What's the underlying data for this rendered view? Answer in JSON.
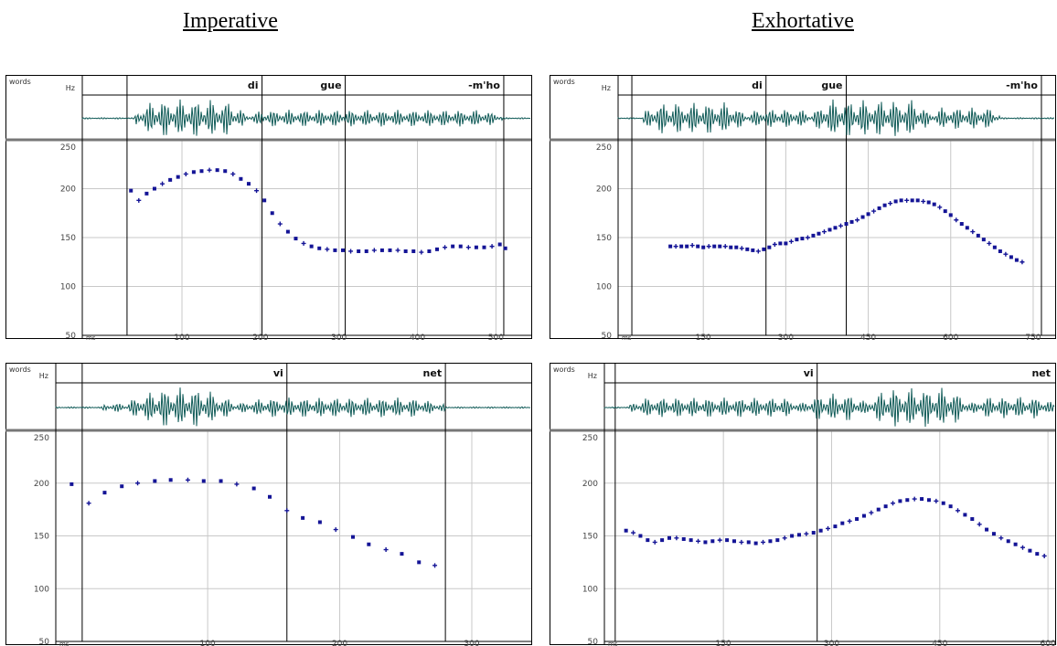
{
  "titles": {
    "left": "Imperative",
    "right": "Exhortative"
  },
  "colors": {
    "frame": "#000000",
    "grid": "#c8c8c8",
    "tier_line": "#777777",
    "waveform": "#0f5a57",
    "pitch_points": "#141496"
  },
  "chart_data": [
    {
      "type": "scatter",
      "title": "",
      "tier_label": "words",
      "unit_label": "Hz",
      "x_unit": "ms",
      "xlim": [
        -27,
        545
      ],
      "ylim": [
        50,
        250
      ],
      "y_ticks": [
        250,
        200,
        150,
        100,
        50
      ],
      "x_ticks": [
        100,
        200,
        300,
        400,
        500
      ],
      "word_boundaries": [
        30,
        202,
        308,
        510
      ],
      "words": [
        {
          "label": "di",
          "end": 202
        },
        {
          "label": "gue",
          "end": 308
        },
        {
          "label": "-m'ho",
          "end": 510
        }
      ],
      "waveform": [
        {
          "start": 40,
          "end": 180,
          "amp": 1.0
        },
        {
          "start": 180,
          "end": 510,
          "amp": 0.45
        }
      ],
      "series": [
        {
          "x": [
            35,
            45,
            55,
            65,
            75,
            85,
            95,
            105,
            115,
            125,
            135,
            145,
            155,
            165,
            175,
            185,
            195,
            205,
            215,
            225,
            235,
            245,
            255,
            265,
            275,
            285,
            295,
            305,
            315,
            325,
            335,
            345,
            355,
            365,
            375,
            385,
            395,
            405,
            415,
            425,
            435,
            445,
            455,
            465,
            475,
            485,
            495,
            505,
            512
          ],
          "y": [
            198,
            188,
            195,
            200,
            205,
            209,
            212,
            215,
            217,
            218,
            219,
            219,
            218,
            215,
            210,
            205,
            198,
            188,
            175,
            164,
            156,
            149,
            144,
            141,
            139,
            138,
            137,
            137,
            136,
            136,
            136,
            137,
            137,
            137,
            137,
            136,
            136,
            135,
            136,
            138,
            140,
            141,
            141,
            140,
            140,
            140,
            141,
            143,
            139
          ]
        }
      ]
    },
    {
      "type": "scatter",
      "title": "",
      "tier_label": "words",
      "unit_label": "Hz",
      "x_unit": "ms",
      "xlim": [
        -5,
        790
      ],
      "ylim": [
        50,
        250
      ],
      "y_ticks": [
        250,
        200,
        150,
        100,
        50
      ],
      "x_ticks": [
        150,
        300,
        450,
        600,
        750
      ],
      "word_boundaries": [
        20,
        264,
        410,
        765
      ],
      "words": [
        {
          "label": "di",
          "end": 264
        },
        {
          "label": "gue",
          "end": 410
        },
        {
          "label": "-m'ho",
          "end": 765
        }
      ],
      "waveform": [
        {
          "start": 40,
          "end": 225,
          "amp": 0.85
        },
        {
          "start": 225,
          "end": 350,
          "amp": 0.5
        },
        {
          "start": 350,
          "end": 560,
          "amp": 1.0
        },
        {
          "start": 560,
          "end": 690,
          "amp": 0.6
        }
      ],
      "series": [
        {
          "x": [
            90,
            100,
            110,
            120,
            130,
            140,
            150,
            160,
            170,
            180,
            190,
            200,
            210,
            220,
            230,
            240,
            250,
            260,
            270,
            280,
            290,
            300,
            310,
            320,
            330,
            340,
            350,
            360,
            370,
            380,
            390,
            400,
            410,
            420,
            430,
            440,
            450,
            460,
            470,
            480,
            490,
            500,
            510,
            520,
            530,
            540,
            550,
            560,
            570,
            580,
            590,
            600,
            610,
            620,
            630,
            640,
            650,
            660,
            670,
            680,
            690,
            700,
            710,
            720,
            730
          ],
          "y": [
            141,
            141,
            141,
            141,
            142,
            141,
            140,
            141,
            141,
            141,
            141,
            140,
            140,
            139,
            138,
            137,
            136,
            138,
            140,
            143,
            144,
            144,
            146,
            148,
            149,
            150,
            152,
            154,
            156,
            158,
            160,
            162,
            164,
            166,
            168,
            171,
            174,
            177,
            180,
            183,
            185,
            187,
            188,
            188,
            188,
            188,
            187,
            186,
            184,
            181,
            177,
            173,
            168,
            164,
            160,
            156,
            152,
            148,
            144,
            140,
            136,
            133,
            130,
            127,
            125
          ]
        }
      ]
    },
    {
      "type": "scatter",
      "title": "",
      "tier_label": "words",
      "unit_label": "Hz",
      "x_unit": "ms",
      "xlim": [
        -15,
        345
      ],
      "ylim": [
        50,
        250
      ],
      "y_ticks": [
        250,
        200,
        150,
        100,
        50
      ],
      "x_ticks": [
        100,
        200,
        300
      ],
      "word_boundaries": [
        5,
        160,
        280
      ],
      "words": [
        {
          "label": "vi",
          "end": 160
        },
        {
          "label": "net",
          "end": 280
        }
      ],
      "waveform": [
        {
          "start": 20,
          "end": 40,
          "amp": 0.4
        },
        {
          "start": 40,
          "end": 120,
          "amp": 1.0
        },
        {
          "start": 120,
          "end": 280,
          "amp": 0.5
        }
      ],
      "series": [
        {
          "x": [
            -3,
            10,
            22,
            35,
            47,
            60,
            72,
            85,
            97,
            110,
            122,
            135,
            147,
            160,
            172,
            185,
            197,
            210,
            222,
            235,
            247,
            260,
            272
          ],
          "y": [
            199,
            181,
            191,
            197,
            200,
            202,
            203,
            203,
            202,
            202,
            199,
            195,
            187,
            174,
            167,
            163,
            156,
            149,
            142,
            137,
            133,
            125,
            122
          ]
        }
      ]
    },
    {
      "type": "scatter",
      "title": "",
      "tier_label": "words",
      "unit_label": "Hz",
      "x_unit": "ms",
      "xlim": [
        -15,
        610
      ],
      "ylim": [
        50,
        250
      ],
      "y_ticks": [
        250,
        200,
        150,
        100,
        50
      ],
      "x_ticks": [
        150,
        300,
        450,
        600
      ],
      "word_boundaries": [
        0,
        280
      ],
      "words": [
        {
          "label": "vi",
          "end": 280
        },
        {
          "label": "net",
          "end": 610
        }
      ],
      "waveform": [
        {
          "start": 20,
          "end": 260,
          "amp": 0.5
        },
        {
          "start": 260,
          "end": 350,
          "amp": 0.7
        },
        {
          "start": 350,
          "end": 490,
          "amp": 1.0
        },
        {
          "start": 490,
          "end": 610,
          "amp": 0.55
        }
      ],
      "series": [
        {
          "x": [
            15,
            25,
            35,
            45,
            55,
            65,
            75,
            85,
            95,
            105,
            115,
            125,
            135,
            145,
            155,
            165,
            175,
            185,
            195,
            205,
            215,
            225,
            235,
            245,
            255,
            265,
            275,
            285,
            295,
            305,
            315,
            325,
            335,
            345,
            355,
            365,
            375,
            385,
            395,
            405,
            415,
            425,
            435,
            445,
            455,
            465,
            475,
            485,
            495,
            505,
            515,
            525,
            535,
            545,
            555,
            565,
            575,
            585,
            595
          ],
          "y": [
            155,
            153,
            150,
            146,
            144,
            146,
            148,
            148,
            147,
            146,
            145,
            144,
            145,
            146,
            146,
            145,
            144,
            144,
            143,
            144,
            145,
            146,
            148,
            150,
            151,
            152,
            153,
            155,
            157,
            159,
            162,
            164,
            166,
            169,
            172,
            175,
            178,
            181,
            183,
            184,
            185,
            185,
            184,
            183,
            181,
            178,
            174,
            170,
            166,
            161,
            156,
            152,
            148,
            145,
            142,
            139,
            136,
            133,
            131
          ]
        }
      ]
    }
  ]
}
